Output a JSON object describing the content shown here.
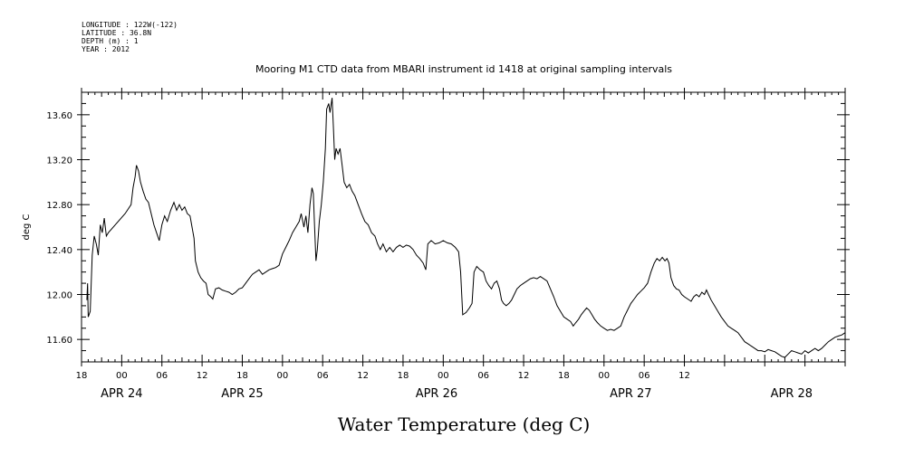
{
  "header": {
    "meta": [
      "LONGITUDE : 122W(-122)",
      "LATITUDE : 36.8N",
      "DEPTH (m) : 1",
      "YEAR : 2012"
    ]
  },
  "chart_data": {
    "type": "line",
    "title": "Mooring M1 CTD data from MBARI instrument id 1418 at original sampling intervals",
    "xlabel": "Water Temperature (deg C)",
    "ylabel": "deg C",
    "x_unit": "hours since APR 23 18:00 (2012)",
    "xlim": [
      0,
      114
    ],
    "ylim": [
      11.4,
      13.8
    ],
    "yticks": [
      11.6,
      12.0,
      12.4,
      12.8,
      13.2,
      13.6
    ],
    "ytick_labels": [
      "11.60",
      "12.00",
      "12.40",
      "12.80",
      "13.20",
      "13.60"
    ],
    "xtick_labels": [
      "18",
      "00",
      "06",
      "12",
      "18",
      "00",
      "06",
      "12",
      "18",
      "00",
      "06",
      "12",
      "18",
      "00",
      "06",
      "12"
    ],
    "day_labels": [
      {
        "label": "APR 24",
        "at": 6
      },
      {
        "label": "APR 25",
        "at": 24
      },
      {
        "label": "APR 26",
        "at": 53
      },
      {
        "label": "APR 27",
        "at": 82
      },
      {
        "label": "APR 28",
        "at": 106
      }
    ],
    "grid": false,
    "series": [
      {
        "color": "#000000",
        "points": [
          [
            0.8,
            11.95
          ],
          [
            0.9,
            12.1
          ],
          [
            1.0,
            11.8
          ],
          [
            1.3,
            11.85
          ],
          [
            1.6,
            12.35
          ],
          [
            1.9,
            12.52
          ],
          [
            2.2,
            12.45
          ],
          [
            2.5,
            12.35
          ],
          [
            2.8,
            12.62
          ],
          [
            3.1,
            12.55
          ],
          [
            3.4,
            12.68
          ],
          [
            3.7,
            12.52
          ],
          [
            4.0,
            12.55
          ],
          [
            6.5,
            12.72
          ],
          [
            7.4,
            12.8
          ],
          [
            7.7,
            12.95
          ],
          [
            8.0,
            13.05
          ],
          [
            8.2,
            13.15
          ],
          [
            8.5,
            13.1
          ],
          [
            8.8,
            13.0
          ],
          [
            9.2,
            12.92
          ],
          [
            9.6,
            12.85
          ],
          [
            10.0,
            12.82
          ],
          [
            10.4,
            12.72
          ],
          [
            10.8,
            12.62
          ],
          [
            11.2,
            12.55
          ],
          [
            11.6,
            12.48
          ],
          [
            12.0,
            12.62
          ],
          [
            12.4,
            12.7
          ],
          [
            12.8,
            12.65
          ],
          [
            13.3,
            12.75
          ],
          [
            13.8,
            12.82
          ],
          [
            14.2,
            12.75
          ],
          [
            14.6,
            12.8
          ],
          [
            15.0,
            12.75
          ],
          [
            15.4,
            12.78
          ],
          [
            15.8,
            12.72
          ],
          [
            16.2,
            12.7
          ],
          [
            16.5,
            12.6
          ],
          [
            16.8,
            12.5
          ],
          [
            17.0,
            12.3
          ],
          [
            17.4,
            12.2
          ],
          [
            17.8,
            12.15
          ],
          [
            18.2,
            12.12
          ],
          [
            18.6,
            12.1
          ],
          [
            18.9,
            12.0
          ],
          [
            19.3,
            11.98
          ],
          [
            19.6,
            11.96
          ],
          [
            20.0,
            12.05
          ],
          [
            20.5,
            12.06
          ],
          [
            21.0,
            12.04
          ],
          [
            21.5,
            12.03
          ],
          [
            22.0,
            12.02
          ],
          [
            22.5,
            12.0
          ],
          [
            23.0,
            12.02
          ],
          [
            23.5,
            12.05
          ],
          [
            24.0,
            12.06
          ],
          [
            24.5,
            12.1
          ],
          [
            25.0,
            12.14
          ],
          [
            25.5,
            12.18
          ],
          [
            26.0,
            12.2
          ],
          [
            26.5,
            12.22
          ],
          [
            27.0,
            12.18
          ],
          [
            27.5,
            12.2
          ],
          [
            28.0,
            12.22
          ],
          [
            28.5,
            12.23
          ],
          [
            29.0,
            12.24
          ],
          [
            29.5,
            12.26
          ],
          [
            30.0,
            12.36
          ],
          [
            30.5,
            12.42
          ],
          [
            31.0,
            12.48
          ],
          [
            31.5,
            12.55
          ],
          [
            32.0,
            12.6
          ],
          [
            32.5,
            12.65
          ],
          [
            32.8,
            12.72
          ],
          [
            33.2,
            12.6
          ],
          [
            33.5,
            12.7
          ],
          [
            33.8,
            12.55
          ],
          [
            34.1,
            12.8
          ],
          [
            34.4,
            12.95
          ],
          [
            34.6,
            12.9
          ],
          [
            34.8,
            12.6
          ],
          [
            35.0,
            12.3
          ],
          [
            35.2,
            12.4
          ],
          [
            35.5,
            12.65
          ],
          [
            35.8,
            12.8
          ],
          [
            36.1,
            13.0
          ],
          [
            36.4,
            13.3
          ],
          [
            36.6,
            13.65
          ],
          [
            36.9,
            13.7
          ],
          [
            37.1,
            13.62
          ],
          [
            37.4,
            13.75
          ],
          [
            37.6,
            13.5
          ],
          [
            37.8,
            13.2
          ],
          [
            38.0,
            13.3
          ],
          [
            38.3,
            13.25
          ],
          [
            38.6,
            13.3
          ],
          [
            38.9,
            13.15
          ],
          [
            39.2,
            13.0
          ],
          [
            39.6,
            12.95
          ],
          [
            40.0,
            12.98
          ],
          [
            40.4,
            12.92
          ],
          [
            40.8,
            12.88
          ],
          [
            41.3,
            12.8
          ],
          [
            41.8,
            12.72
          ],
          [
            42.3,
            12.65
          ],
          [
            42.8,
            12.62
          ],
          [
            43.3,
            12.55
          ],
          [
            43.8,
            12.52
          ],
          [
            44.2,
            12.45
          ],
          [
            44.6,
            12.4
          ],
          [
            45.0,
            12.45
          ],
          [
            45.5,
            12.38
          ],
          [
            46.0,
            12.42
          ],
          [
            46.5,
            12.38
          ],
          [
            47.0,
            12.42
          ],
          [
            47.5,
            12.44
          ],
          [
            48.0,
            12.42
          ],
          [
            48.5,
            12.44
          ],
          [
            49.0,
            12.43
          ],
          [
            49.5,
            12.4
          ],
          [
            50.0,
            12.35
          ],
          [
            50.5,
            12.32
          ],
          [
            51.0,
            12.28
          ],
          [
            51.4,
            12.22
          ],
          [
            51.7,
            12.45
          ],
          [
            52.2,
            12.48
          ],
          [
            52.8,
            12.45
          ],
          [
            53.4,
            12.46
          ],
          [
            54.0,
            12.48
          ],
          [
            54.6,
            12.46
          ],
          [
            55.2,
            12.45
          ],
          [
            55.8,
            12.42
          ],
          [
            56.3,
            12.38
          ],
          [
            56.6,
            12.2
          ],
          [
            56.9,
            11.82
          ],
          [
            57.4,
            11.84
          ],
          [
            57.9,
            11.88
          ],
          [
            58.3,
            11.92
          ],
          [
            58.6,
            12.2
          ],
          [
            59.0,
            12.25
          ],
          [
            59.5,
            12.22
          ],
          [
            60.0,
            12.2
          ],
          [
            60.4,
            12.12
          ],
          [
            60.8,
            12.08
          ],
          [
            61.2,
            12.05
          ],
          [
            61.6,
            12.1
          ],
          [
            62.0,
            12.12
          ],
          [
            62.4,
            12.05
          ],
          [
            62.7,
            11.95
          ],
          [
            63.0,
            11.92
          ],
          [
            63.4,
            11.9
          ],
          [
            63.8,
            11.92
          ],
          [
            64.2,
            11.95
          ],
          [
            64.6,
            12.0
          ],
          [
            65.0,
            12.05
          ],
          [
            65.5,
            12.08
          ],
          [
            66.0,
            12.1
          ],
          [
            66.5,
            12.12
          ],
          [
            67.0,
            12.14
          ],
          [
            67.5,
            12.15
          ],
          [
            68.0,
            12.14
          ],
          [
            68.5,
            12.16
          ],
          [
            69.0,
            12.14
          ],
          [
            69.5,
            12.12
          ],
          [
            70.0,
            12.05
          ],
          [
            70.5,
            11.98
          ],
          [
            71.0,
            11.9
          ],
          [
            71.5,
            11.85
          ],
          [
            72.0,
            11.8
          ],
          [
            72.5,
            11.78
          ],
          [
            73.0,
            11.76
          ],
          [
            73.4,
            11.72
          ],
          [
            73.8,
            11.75
          ],
          [
            74.2,
            11.78
          ],
          [
            74.6,
            11.82
          ],
          [
            75.0,
            11.85
          ],
          [
            75.4,
            11.88
          ],
          [
            75.8,
            11.86
          ],
          [
            76.2,
            11.82
          ],
          [
            76.6,
            11.78
          ],
          [
            77.0,
            11.75
          ],
          [
            77.5,
            11.72
          ],
          [
            78.0,
            11.7
          ],
          [
            78.5,
            11.68
          ],
          [
            79.0,
            11.69
          ],
          [
            79.5,
            11.68
          ],
          [
            80.0,
            11.7
          ],
          [
            80.5,
            11.72
          ],
          [
            81.0,
            11.8
          ],
          [
            81.5,
            11.86
          ],
          [
            82.0,
            11.92
          ],
          [
            82.5,
            11.96
          ],
          [
            83.0,
            12.0
          ],
          [
            83.5,
            12.03
          ],
          [
            84.0,
            12.06
          ],
          [
            84.5,
            12.1
          ],
          [
            85.0,
            12.2
          ],
          [
            85.5,
            12.28
          ],
          [
            85.9,
            12.32
          ],
          [
            86.3,
            12.3
          ],
          [
            86.7,
            12.33
          ],
          [
            87.1,
            12.3
          ],
          [
            87.4,
            12.32
          ],
          [
            87.7,
            12.28
          ],
          [
            88.0,
            12.15
          ],
          [
            88.4,
            12.08
          ],
          [
            88.8,
            12.05
          ],
          [
            89.2,
            12.04
          ],
          [
            89.6,
            12.0
          ],
          [
            90.0,
            11.98
          ],
          [
            90.5,
            11.96
          ],
          [
            91.0,
            11.94
          ],
          [
            91.4,
            11.98
          ],
          [
            91.8,
            12.0
          ],
          [
            92.2,
            11.98
          ],
          [
            92.6,
            12.02
          ],
          [
            93.0,
            12.0
          ],
          [
            93.3,
            12.04
          ],
          [
            93.6,
            12.0
          ],
          [
            94.0,
            11.95
          ],
          [
            94.5,
            11.9
          ],
          [
            95.0,
            11.85
          ],
          [
            95.5,
            11.8
          ],
          [
            96.0,
            11.76
          ],
          [
            96.5,
            11.72
          ],
          [
            97.0,
            11.7
          ],
          [
            97.5,
            11.68
          ],
          [
            98.0,
            11.66
          ],
          [
            98.5,
            11.62
          ],
          [
            99.0,
            11.58
          ],
          [
            99.5,
            11.56
          ],
          [
            100.0,
            11.54
          ],
          [
            100.5,
            11.52
          ],
          [
            101.0,
            11.5
          ],
          [
            101.5,
            11.5
          ],
          [
            102.0,
            11.49
          ],
          [
            102.5,
            11.51
          ],
          [
            103.0,
            11.5
          ],
          [
            103.5,
            11.49
          ],
          [
            104.0,
            11.47
          ],
          [
            104.5,
            11.45
          ],
          [
            105.0,
            11.44
          ],
          [
            105.5,
            11.47
          ],
          [
            106.0,
            11.5
          ],
          [
            106.5,
            11.49
          ],
          [
            107.0,
            11.48
          ],
          [
            107.5,
            11.47
          ],
          [
            108.0,
            11.5
          ],
          [
            108.5,
            11.48
          ],
          [
            109.0,
            11.5
          ],
          [
            109.5,
            11.52
          ],
          [
            110.0,
            11.5
          ],
          [
            110.5,
            11.52
          ],
          [
            111.0,
            11.55
          ],
          [
            111.5,
            11.58
          ],
          [
            112.0,
            11.6
          ],
          [
            112.5,
            11.62
          ],
          [
            113.0,
            11.63
          ],
          [
            113.5,
            11.64
          ],
          [
            114.0,
            11.66
          ]
        ]
      }
    ]
  }
}
